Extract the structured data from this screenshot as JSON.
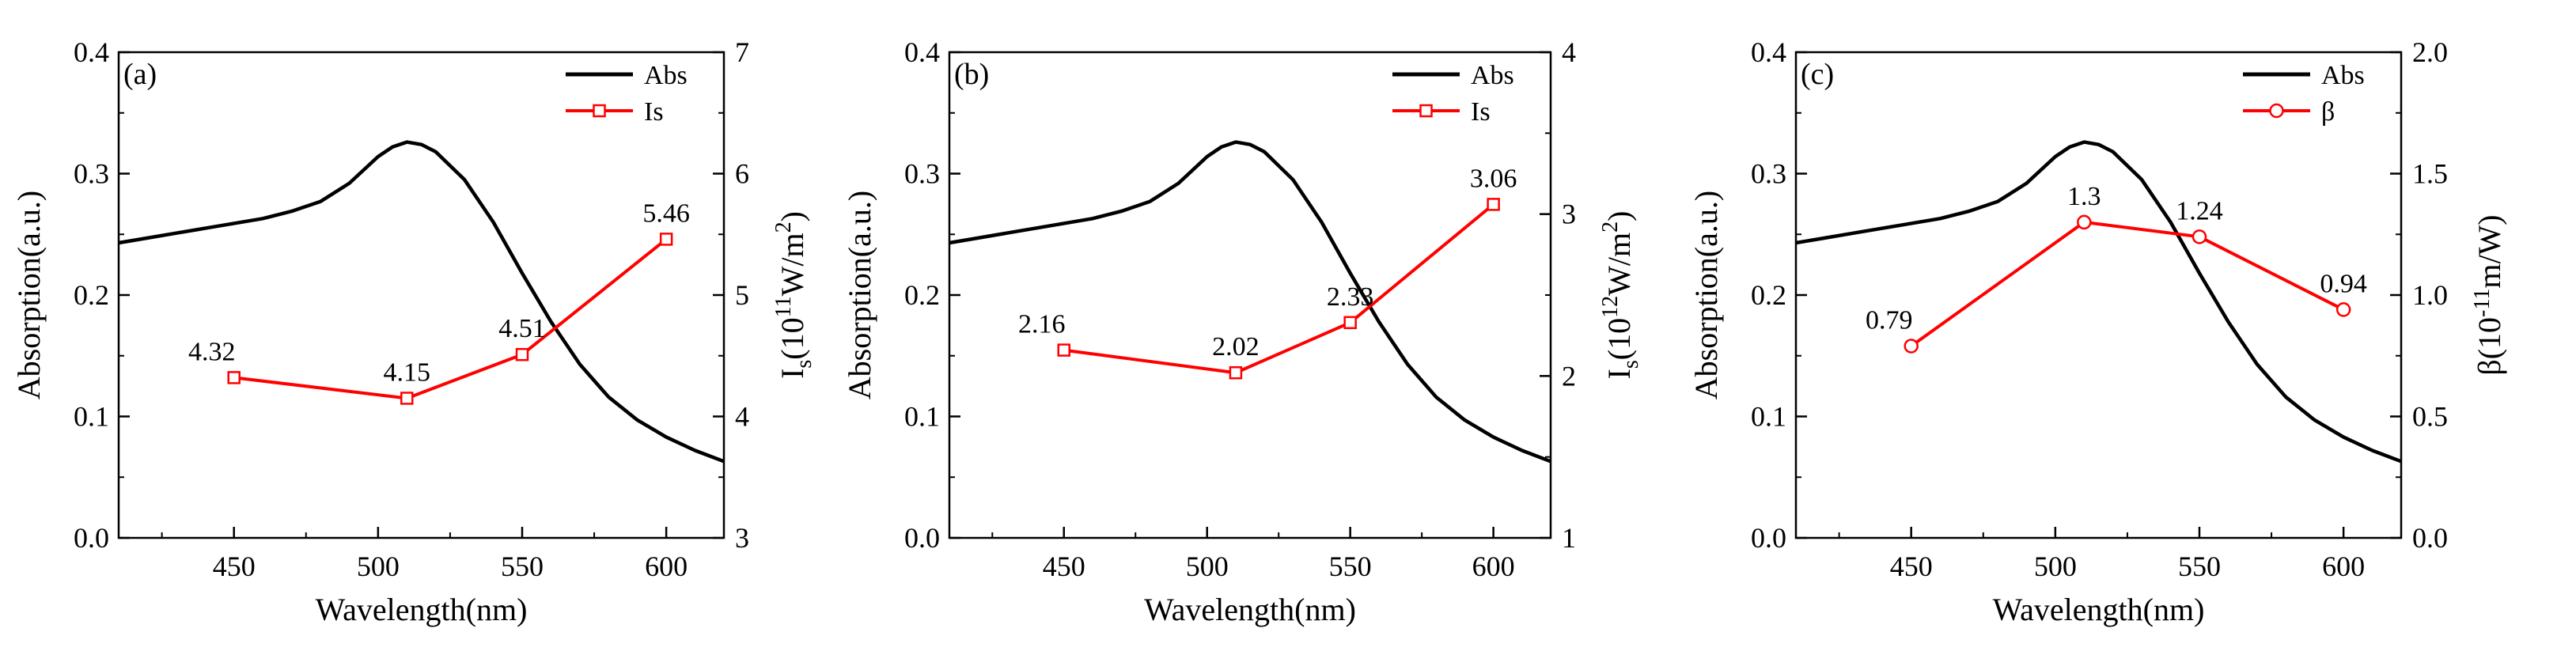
{
  "chart_data": [
    {
      "type": "line",
      "panel_label": "(a)",
      "xlabel": "Wavelength(nm)",
      "ylabel": "Absorption(a.u.)",
      "y2label_parts": [
        "I",
        "s",
        "(10",
        "11",
        "W/m",
        "2",
        ")"
      ],
      "xlim": [
        410,
        620
      ],
      "ylim": [
        0,
        0.4
      ],
      "y2lim": [
        3,
        7
      ],
      "xticks": [
        450,
        500,
        550,
        600
      ],
      "yticks": [
        "0.0",
        "0.1",
        "0.2",
        "0.3",
        "0.4"
      ],
      "y2ticks": [
        "3",
        "4",
        "5",
        "6",
        "7"
      ],
      "legend": [
        {
          "name": "Abs",
          "color": "#000000",
          "marker": "none"
        },
        {
          "name": "Is",
          "color": "#ff0000",
          "marker": "square"
        }
      ],
      "legend_position": "top-right",
      "series": [
        {
          "name": "Abs",
          "axis": "left",
          "color": "#000000",
          "x": [
            410,
            420,
            430,
            440,
            450,
            460,
            470,
            480,
            490,
            500,
            505,
            510,
            515,
            520,
            530,
            540,
            550,
            560,
            570,
            580,
            590,
            600,
            610,
            620
          ],
          "y": [
            0.243,
            0.247,
            0.251,
            0.255,
            0.259,
            0.263,
            0.269,
            0.277,
            0.292,
            0.314,
            0.322,
            0.326,
            0.324,
            0.318,
            0.295,
            0.26,
            0.218,
            0.178,
            0.143,
            0.116,
            0.097,
            0.083,
            0.072,
            0.063
          ]
        },
        {
          "name": "Is",
          "axis": "right",
          "color": "#ff0000",
          "marker": "square",
          "x": [
            450,
            510,
            550,
            600
          ],
          "y": [
            4.32,
            4.15,
            4.51,
            5.46
          ],
          "labels": [
            "4.32",
            "4.15",
            "4.51",
            "5.46"
          ]
        }
      ]
    },
    {
      "type": "line",
      "panel_label": "(b)",
      "xlabel": "Wavelength(nm)",
      "ylabel": "Absorption(a.u.)",
      "y2label_parts": [
        "I",
        "s",
        "(10",
        "12",
        "W/m",
        "2",
        ")"
      ],
      "xlim": [
        410,
        620
      ],
      "ylim": [
        0,
        0.4
      ],
      "y2lim": [
        1,
        4
      ],
      "xticks": [
        450,
        500,
        550,
        600
      ],
      "yticks": [
        "0.0",
        "0.1",
        "0.2",
        "0.3",
        "0.4"
      ],
      "y2ticks": [
        "1",
        "2",
        "3",
        "4"
      ],
      "legend": [
        {
          "name": "Abs",
          "color": "#000000",
          "marker": "none"
        },
        {
          "name": "Is",
          "color": "#ff0000",
          "marker": "square"
        }
      ],
      "legend_position": "top-right",
      "series": [
        {
          "name": "Abs",
          "axis": "left",
          "color": "#000000",
          "x": [
            410,
            420,
            430,
            440,
            450,
            460,
            470,
            480,
            490,
            500,
            505,
            510,
            515,
            520,
            530,
            540,
            550,
            560,
            570,
            580,
            590,
            600,
            610,
            620
          ],
          "y": [
            0.243,
            0.247,
            0.251,
            0.255,
            0.259,
            0.263,
            0.269,
            0.277,
            0.292,
            0.314,
            0.322,
            0.326,
            0.324,
            0.318,
            0.295,
            0.26,
            0.218,
            0.178,
            0.143,
            0.116,
            0.097,
            0.083,
            0.072,
            0.063
          ]
        },
        {
          "name": "Is",
          "axis": "right",
          "color": "#ff0000",
          "marker": "square",
          "x": [
            450,
            510,
            550,
            600
          ],
          "y": [
            2.16,
            2.02,
            2.33,
            3.06
          ],
          "labels": [
            "2.16",
            "2.02",
            "2.33",
            "3.06"
          ]
        }
      ]
    },
    {
      "type": "line",
      "panel_label": "(c)",
      "xlabel": "Wavelength(nm)",
      "ylabel": "Absorption(a.u.)",
      "y2label_parts": [
        "β(10",
        "-11",
        "m/W)"
      ],
      "xlim": [
        410,
        620
      ],
      "ylim": [
        0,
        0.4
      ],
      "y2lim": [
        0,
        2
      ],
      "xticks": [
        450,
        500,
        550,
        600
      ],
      "yticks": [
        "0.0",
        "0.1",
        "0.2",
        "0.3",
        "0.4"
      ],
      "y2ticks": [
        "0.0",
        "0.5",
        "1.0",
        "1.5",
        "2.0"
      ],
      "legend": [
        {
          "name": "Abs",
          "color": "#000000",
          "marker": "none"
        },
        {
          "name": "β",
          "color": "#ff0000",
          "marker": "circle"
        }
      ],
      "legend_position": "top-right",
      "series": [
        {
          "name": "Abs",
          "axis": "left",
          "color": "#000000",
          "x": [
            410,
            420,
            430,
            440,
            450,
            460,
            470,
            480,
            490,
            500,
            505,
            510,
            515,
            520,
            530,
            540,
            550,
            560,
            570,
            580,
            590,
            600,
            610,
            620
          ],
          "y": [
            0.243,
            0.247,
            0.251,
            0.255,
            0.259,
            0.263,
            0.269,
            0.277,
            0.292,
            0.314,
            0.322,
            0.326,
            0.324,
            0.318,
            0.295,
            0.26,
            0.218,
            0.178,
            0.143,
            0.116,
            0.097,
            0.083,
            0.072,
            0.063
          ]
        },
        {
          "name": "β",
          "axis": "right",
          "color": "#ff0000",
          "marker": "circle",
          "x": [
            450,
            510,
            550,
            600
          ],
          "y": [
            0.79,
            1.3,
            1.24,
            0.94
          ],
          "labels": [
            "0.79",
            "1.3",
            "1.24",
            "0.94"
          ]
        }
      ]
    }
  ]
}
